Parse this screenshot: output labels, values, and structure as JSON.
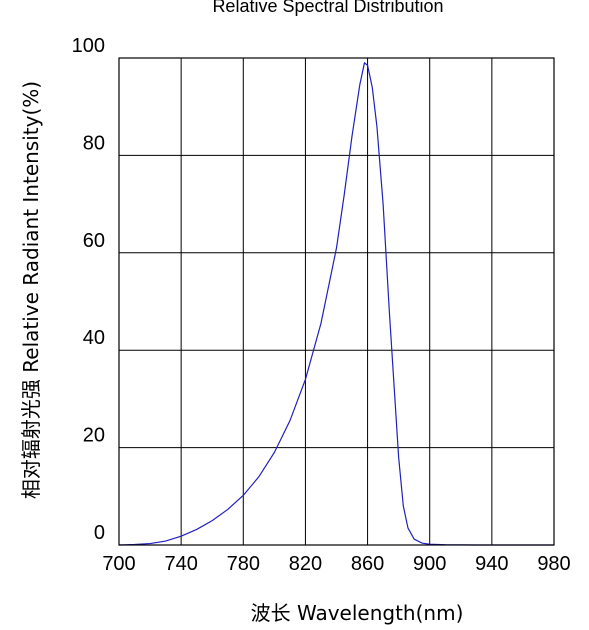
{
  "chart_data": {
    "type": "line",
    "title": "Relative Spectral Distribution",
    "xlabel": "波长  Wavelength(nm)",
    "ylabel": "相对辐射光强  Relative  Radiant Intensity(%)",
    "xlim": [
      700,
      980
    ],
    "ylim": [
      0,
      100
    ],
    "xticks": [
      700,
      740,
      780,
      820,
      860,
      900,
      940,
      980
    ],
    "yticks": [
      0,
      20,
      40,
      60,
      80,
      100
    ],
    "xtick_labels": [
      "700",
      "740",
      "780",
      "820",
      "860",
      "900",
      "940",
      "980"
    ],
    "ytick_labels": [
      "0",
      "20",
      "40",
      "60",
      "80",
      "100"
    ],
    "grid": true,
    "line_color": "#2020c0",
    "series": [
      {
        "x": [
          700,
          710,
          720,
          730,
          740,
          750,
          760,
          770,
          780,
          790,
          800,
          810,
          820,
          830,
          840,
          845,
          850,
          855,
          858,
          860,
          863,
          866,
          870,
          874,
          877,
          880,
          883,
          886,
          890,
          895,
          900,
          910,
          920,
          930,
          940,
          960,
          980
        ],
        "y": [
          0,
          0.1,
          0.3,
          0.8,
          1.8,
          3.2,
          5.0,
          7.3,
          10.2,
          14.0,
          19.0,
          25.5,
          34.0,
          45.5,
          61.0,
          72.0,
          84.0,
          94.5,
          99.0,
          98.5,
          94.0,
          86.0,
          70.0,
          48.0,
          33.0,
          18.0,
          8.0,
          3.5,
          1.2,
          0.4,
          0.15,
          0.05,
          0.02,
          0,
          0,
          0,
          0
        ]
      }
    ]
  }
}
